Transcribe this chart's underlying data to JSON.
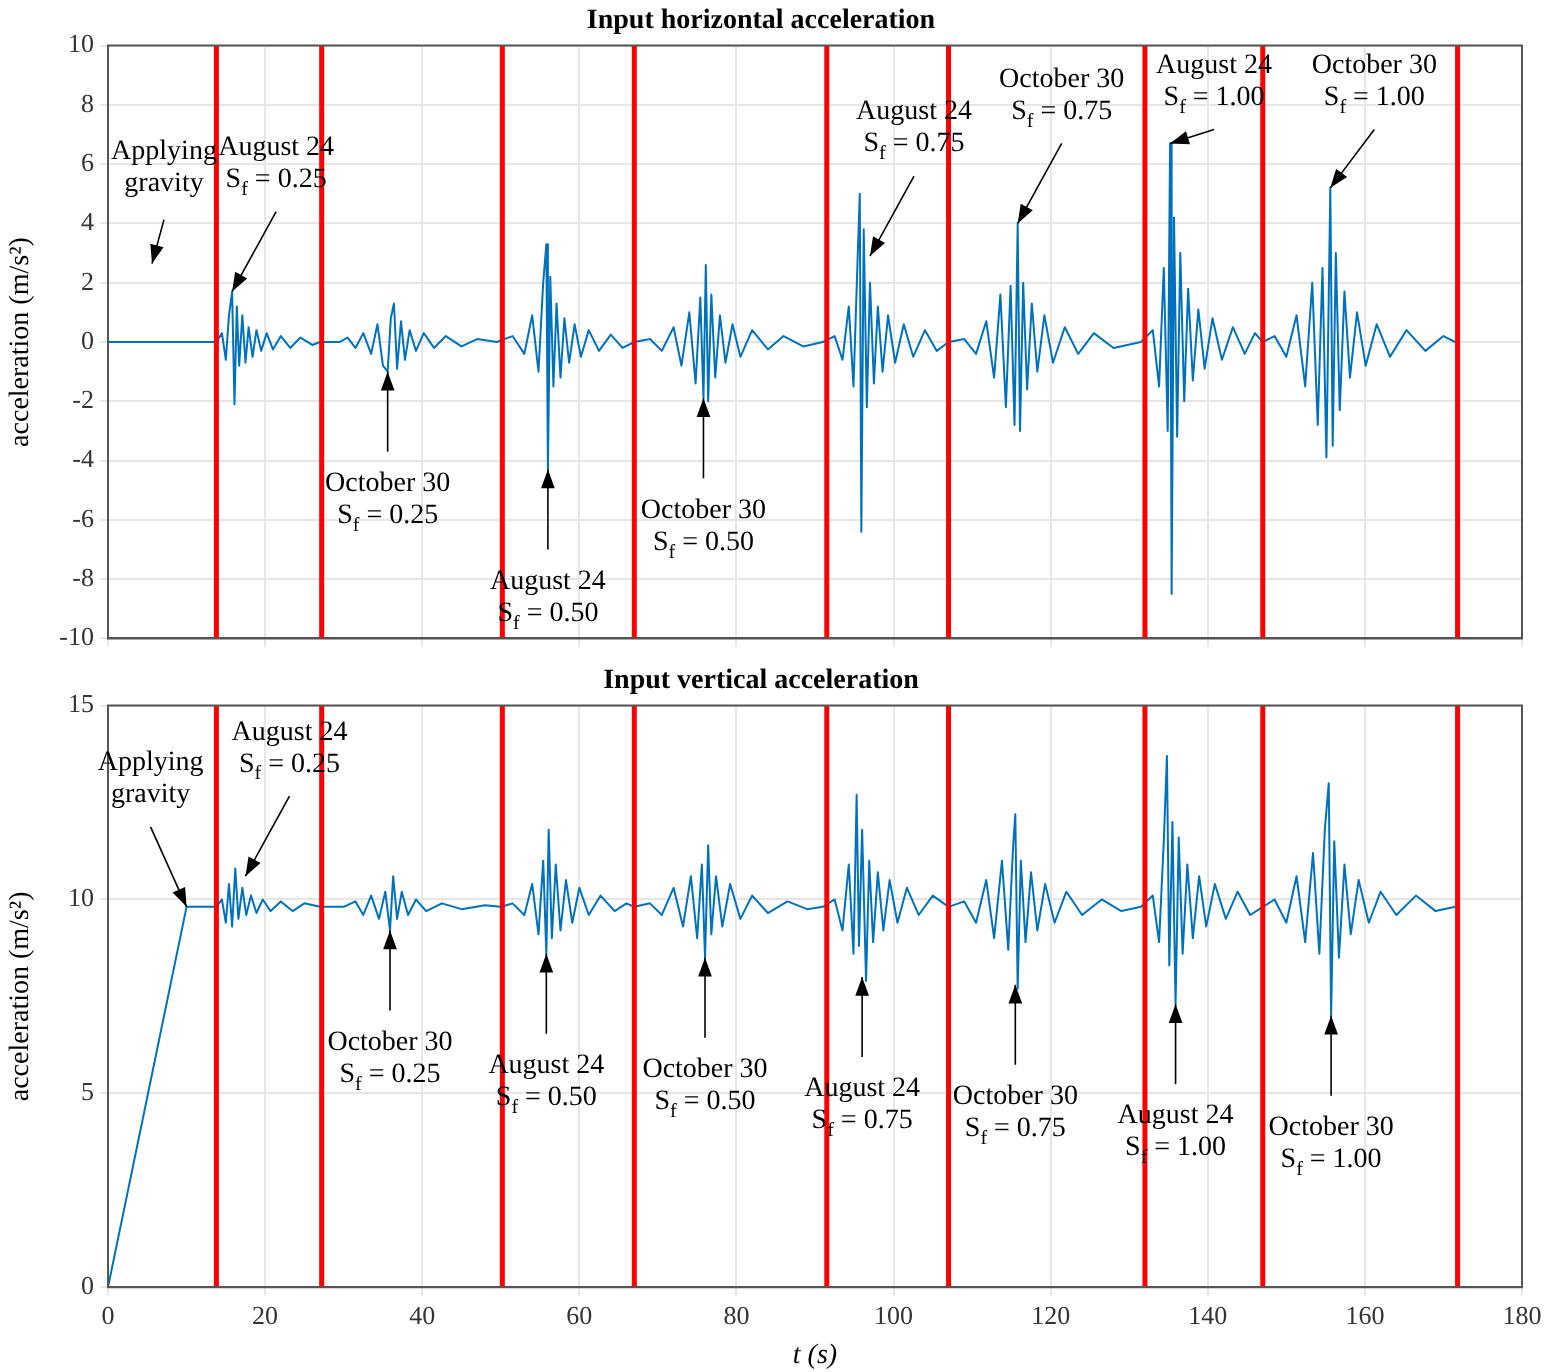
{
  "chart_data": [
    {
      "type": "line",
      "title": "Input horizontal acceleration",
      "ylabel": "acceleration (m/s²)",
      "marker": "none",
      "grid": true,
      "tick_labels": "y",
      "xlim": [
        0,
        180
      ],
      "xticks": [
        0,
        20,
        40,
        60,
        80,
        100,
        120,
        140,
        160,
        180
      ],
      "ylim": [
        -10,
        10
      ],
      "yticks": [
        -10,
        -8,
        -6,
        -4,
        -2,
        0,
        2,
        4,
        6,
        8,
        10
      ],
      "series": [
        {
          "color": "#0072bd",
          "x": [
            0,
            13.8,
            14.5,
            15.0,
            15.4,
            15.8,
            16.1,
            16.4,
            16.7,
            17.1,
            17.5,
            17.9,
            18.4,
            18.9,
            19.5,
            20.2,
            21.0,
            22.0,
            23.2,
            24.5,
            26.0,
            27.0,
            29.5,
            30.5,
            31.5,
            32.5,
            33.5,
            34.3,
            35.0,
            35.6,
            36.0,
            36.4,
            36.8,
            37.3,
            37.8,
            38.4,
            39.2,
            40.2,
            41.5,
            43,
            45,
            47,
            49.5,
            51.5,
            53,
            54,
            54.8,
            55.4,
            55.8,
            56.0,
            56.3,
            56.7,
            57.1,
            57.6,
            58.1,
            58.7,
            59.4,
            60.2,
            61.2,
            62.5,
            64,
            65.5,
            67,
            69,
            70.5,
            72,
            73,
            74,
            74.8,
            75.4,
            75.8,
            76.1,
            76.4,
            76.8,
            77.3,
            77.9,
            78.6,
            79.5,
            80.5,
            82,
            84,
            86,
            88.5,
            91,
            92.5,
            93.5,
            94.3,
            94.9,
            95.4,
            95.7,
            95.9,
            96.2,
            96.6,
            97.0,
            97.5,
            98.0,
            98.6,
            99.3,
            100.2,
            101.3,
            102.5,
            104,
            105.5,
            107,
            109,
            110.5,
            111.8,
            112.8,
            113.6,
            114.3,
            114.9,
            115.4,
            115.8,
            116.1,
            116.5,
            117,
            117.6,
            118.3,
            119.2,
            120.3,
            121.8,
            123.5,
            125.5,
            128,
            131.5,
            133,
            133.8,
            134.4,
            134.9,
            135.2,
            135.4,
            135.7,
            136.1,
            136.5,
            137,
            137.5,
            138.1,
            138.8,
            139.6,
            140.6,
            141.8,
            143.2,
            144.7,
            146,
            147,
            148.5,
            150,
            151.3,
            152.4,
            153.3,
            154,
            154.6,
            155.1,
            155.6,
            155.9,
            156.3,
            156.8,
            157.4,
            158.1,
            159,
            160.1,
            161.5,
            163.2,
            165.3,
            167.7,
            170,
            171.5
          ],
          "values": [
            0,
            0,
            0.3,
            -0.6,
            0.9,
            1.7,
            -2.1,
            1.2,
            -0.8,
            0.9,
            -0.7,
            0.5,
            -0.5,
            0.4,
            -0.3,
            0.3,
            -0.25,
            0.2,
            -0.2,
            0.15,
            -0.1,
            0,
            0,
            0.15,
            -0.2,
            0.3,
            -0.4,
            0.6,
            -0.8,
            -1.0,
            0.8,
            1.3,
            -0.9,
            0.7,
            -0.6,
            0.4,
            -0.3,
            0.3,
            -0.2,
            0.2,
            -0.15,
            0.1,
            0,
            0.2,
            -0.4,
            0.9,
            -1.0,
            2.0,
            3.3,
            -4.3,
            2.2,
            -1.5,
            1.3,
            -1.2,
            0.8,
            -0.7,
            0.6,
            -0.5,
            0.4,
            -0.3,
            0.25,
            -0.2,
            0,
            0.1,
            -0.3,
            0.5,
            -0.8,
            1.0,
            -1.4,
            1.5,
            -1.9,
            2.6,
            -2.0,
            1.6,
            -1.2,
            0.9,
            -0.7,
            0.6,
            -0.5,
            0.4,
            -0.25,
            0.2,
            -0.15,
            0,
            0.2,
            -0.6,
            1.2,
            -1.5,
            2.6,
            5.0,
            -6.4,
            3.8,
            -2.2,
            2.0,
            -1.4,
            1.2,
            -1.0,
            0.9,
            -0.7,
            0.6,
            -0.5,
            0.4,
            -0.3,
            0,
            0.1,
            -0.4,
            0.7,
            -1.2,
            1.6,
            -2.2,
            1.9,
            -2.8,
            4.0,
            -3.0,
            2.0,
            -1.6,
            1.3,
            -1.0,
            0.9,
            -0.7,
            0.5,
            -0.4,
            0.3,
            -0.2,
            0,
            0.4,
            -1.5,
            2.5,
            -3.0,
            6.7,
            -8.5,
            4.2,
            -3.2,
            3.0,
            -2.0,
            1.8,
            -1.3,
            1.1,
            -0.9,
            0.8,
            -0.6,
            0.5,
            -0.4,
            0.3,
            0,
            0.2,
            -0.5,
            0.9,
            -1.5,
            2.0,
            -2.8,
            2.5,
            -3.9,
            5.2,
            -3.5,
            3.0,
            -2.3,
            1.7,
            -1.2,
            1.0,
            -0.8,
            0.6,
            -0.5,
            0.4,
            -0.3,
            0.2,
            0
          ]
        }
      ],
      "ref_lines": [
        {
          "axis": "x",
          "value": 13.8,
          "color": "#ff0000"
        },
        {
          "axis": "x",
          "value": 27.2,
          "color": "#ff0000"
        },
        {
          "axis": "x",
          "value": 50.2,
          "color": "#ff0000"
        },
        {
          "axis": "x",
          "value": 67,
          "color": "#ff0000"
        },
        {
          "axis": "x",
          "value": 91.5,
          "color": "#ff0000"
        },
        {
          "axis": "x",
          "value": 107,
          "color": "#ff0000"
        },
        {
          "axis": "x",
          "value": 132,
          "color": "#ff0000"
        },
        {
          "axis": "x",
          "value": 147,
          "color": "#ff0000"
        },
        {
          "axis": "x",
          "value": 171.8,
          "color": "#ff0000"
        }
      ],
      "annotations": [
        "Applying\ngravity",
        {
          "text": "August 24\nS$_{f}$ = 0.25",
          "x": 15.8,
          "y": 1.7
        },
        {
          "text": "October 30\nS$_{f}$ = 0.25",
          "x": 35.6,
          "y": -1.0
        },
        {
          "text": "August 24\nS$_{f}$ = 0.50",
          "x": 56.0,
          "y": -4.3
        },
        {
          "text": "October 30\nS$_{f}$ = 0.50",
          "x": 75.8,
          "y": -1.9
        },
        {
          "text": "August 24\nS$_{f}$ = 0.75",
          "x": 97,
          "y": 2.9
        },
        {
          "text": "October 30\nS$_{f}$ = 0.75",
          "x": 115.8,
          "y": 4.0
        },
        {
          "text": "August 24\nS$_{f}$ = 1.00",
          "x": 135.2,
          "y": 6.7
        },
        {
          "text": "October 30\nS$_{f}$ = 1.00",
          "x": 155.6,
          "y": 5.2
        }
      ]
    },
    {
      "type": "line",
      "title": "Input vertical acceleration",
      "ylabel": "acceleration (m/s²)",
      "xlabel": "t (s)",
      "marker": "none",
      "grid": true,
      "xlim": [
        0,
        180
      ],
      "xticks": [
        0,
        20,
        40,
        60,
        80,
        100,
        120,
        140,
        160,
        180
      ],
      "ylim": [
        0,
        15
      ],
      "yticks": [
        0,
        5,
        10,
        15
      ],
      "series": [
        {
          "color": "#0072bd",
          "x": [
            0,
            10,
            13.8,
            14.5,
            15.0,
            15.4,
            15.8,
            16.2,
            16.6,
            17.1,
            17.6,
            18.2,
            18.9,
            19.7,
            20.7,
            22,
            23.5,
            25,
            27,
            30,
            31.5,
            32.5,
            33.5,
            34.5,
            35.3,
            35.9,
            36.3,
            36.8,
            37.4,
            38.2,
            39.2,
            40.5,
            42.5,
            45,
            48,
            50,
            51.5,
            53,
            54,
            54.8,
            55.4,
            55.8,
            56.1,
            56.5,
            57,
            57.6,
            58.3,
            59.1,
            60,
            61.2,
            62.7,
            64.5,
            66,
            67,
            69,
            70.5,
            72,
            73.2,
            74.2,
            75,
            75.6,
            76.0,
            76.4,
            76.8,
            77.4,
            78.2,
            79.2,
            80.5,
            82,
            84,
            86.5,
            89,
            91,
            92.5,
            93.5,
            94.3,
            94.9,
            95.3,
            95.6,
            96.0,
            96.5,
            96.9,
            97.4,
            98,
            98.7,
            99.5,
            100.5,
            101.7,
            103.2,
            105,
            107,
            109,
            110.5,
            111.8,
            112.8,
            113.8,
            114.6,
            115.2,
            115.5,
            115.8,
            116.2,
            116.8,
            117.5,
            118.3,
            119.3,
            120.5,
            122,
            124,
            126.5,
            129,
            131.5,
            133,
            133.8,
            134.4,
            134.8,
            135.1,
            135.5,
            135.9,
            136.3,
            136.8,
            137.4,
            138.1,
            138.9,
            139.8,
            140.9,
            142.3,
            143.8,
            145.4,
            147,
            148.5,
            150,
            151.3,
            152.4,
            153.4,
            154.2,
            154.9,
            155.4,
            155.7,
            156.1,
            156.7,
            157.4,
            158.2,
            159.2,
            160.5,
            162,
            164,
            166.5,
            169,
            171.5
          ],
          "values": [
            0,
            9.81,
            9.81,
            10.0,
            9.4,
            10.4,
            9.3,
            10.8,
            9.5,
            10.3,
            9.6,
            10.1,
            9.65,
            10.0,
            9.7,
            9.95,
            9.7,
            9.9,
            9.81,
            9.81,
            9.95,
            9.6,
            10.1,
            9.5,
            10.2,
            9.2,
            10.6,
            9.5,
            10.2,
            9.6,
            10.0,
            9.7,
            9.9,
            9.75,
            9.85,
            9.81,
            9.9,
            9.6,
            10.4,
            9.1,
            11.0,
            8.6,
            11.8,
            9.0,
            10.9,
            9.2,
            10.5,
            9.4,
            10.3,
            9.6,
            10.1,
            9.7,
            9.9,
            9.81,
            9.9,
            9.6,
            10.3,
            9.3,
            10.6,
            9.0,
            10.9,
            8.5,
            11.4,
            9.1,
            10.6,
            9.3,
            10.4,
            9.5,
            10.1,
            9.65,
            9.95,
            9.75,
            9.81,
            10.0,
            9.2,
            10.9,
            8.6,
            12.7,
            8.8,
            11.8,
            7.9,
            11.0,
            8.9,
            10.7,
            9.2,
            10.5,
            9.4,
            10.3,
            9.6,
            10.1,
            9.81,
            9.95,
            9.4,
            10.5,
            9.0,
            11.0,
            8.7,
            11.3,
            12.2,
            7.7,
            11.0,
            8.9,
            10.7,
            9.2,
            10.4,
            9.4,
            10.2,
            9.6,
            10.0,
            9.7,
            9.81,
            10.1,
            8.9,
            11.5,
            13.7,
            8.3,
            12.0,
            7.3,
            11.6,
            8.6,
            10.9,
            9.0,
            10.6,
            9.3,
            10.4,
            9.5,
            10.2,
            9.6,
            9.81,
            10.0,
            9.4,
            10.6,
            8.9,
            11.2,
            8.6,
            11.8,
            13.0,
            7.0,
            11.5,
            8.5,
            10.9,
            9.1,
            10.5,
            9.4,
            10.2,
            9.6,
            10.1,
            9.7,
            9.81
          ]
        }
      ],
      "ref_lines": [
        {
          "axis": "x",
          "value": 13.8,
          "color": "#ff0000"
        },
        {
          "axis": "x",
          "value": 27.2,
          "color": "#ff0000"
        },
        {
          "axis": "x",
          "value": 50.2,
          "color": "#ff0000"
        },
        {
          "axis": "x",
          "value": 67,
          "color": "#ff0000"
        },
        {
          "axis": "x",
          "value": 91.5,
          "color": "#ff0000"
        },
        {
          "axis": "x",
          "value": 107,
          "color": "#ff0000"
        },
        {
          "axis": "x",
          "value": 132,
          "color": "#ff0000"
        },
        {
          "axis": "x",
          "value": 147,
          "color": "#ff0000"
        },
        {
          "axis": "x",
          "value": 171.8,
          "color": "#ff0000"
        }
      ],
      "annotations": [
        {
          "text": "Applying\ngravity",
          "x": 10,
          "y": 9.81
        },
        {
          "text": "August 24\nS$_{f}$ = 0.25",
          "x": 17.5,
          "y": 10.6
        },
        {
          "text": "October 30\nS$_{f}$ = 0.25",
          "x": 35.9,
          "y": 9.2
        },
        {
          "text": "August 24\nS$_{f}$ = 0.50",
          "x": 55.8,
          "y": 8.6
        },
        {
          "text": "October 30\nS$_{f}$ = 0.50",
          "x": 76.0,
          "y": 8.5
        },
        {
          "text": "August 24\nS$_{f}$ = 0.75",
          "x": 96,
          "y": 8.0
        },
        {
          "text": "October 30\nS$_{f}$ = 0.75",
          "x": 115.5,
          "y": 7.8
        },
        {
          "text": "August 24\nS$_{f}$ = 1.00",
          "x": 135.9,
          "y": 7.3
        },
        {
          "text": "October 30\nS$_{f}$ = 1.00",
          "x": 155.7,
          "y": 7.0
        }
      ]
    }
  ]
}
